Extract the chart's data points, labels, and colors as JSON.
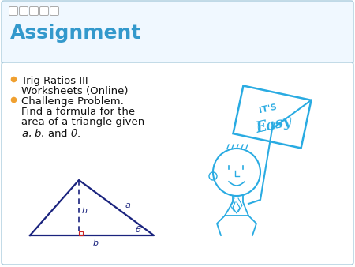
{
  "title": "Assignment",
  "title_color": "#3399CC",
  "title_fontsize": 18,
  "bullet1_line1": "Trig Ratios III",
  "bullet1_line2": "Worksheets (Online)",
  "bullet2_line1": "Challenge Problem:",
  "bullet2_line2": "Find a formula for the",
  "bullet2_line3": "area of a triangle given",
  "bullet2_line4": "a, b, and θ.",
  "bullet_color": "#F0A030",
  "text_color": "#111111",
  "text_fontsize": 9.5,
  "slide_bg": "#FFFFFF",
  "header_box_edgecolor": "#AACCDD",
  "header_box_fill": "#F0F8FF",
  "content_box_edgecolor": "#AACCDD",
  "content_box_fill": "#FFFFFF",
  "triangle_color": "#1A237E",
  "dashed_color": "#1A237E",
  "right_angle_color": "#CC2222",
  "sign_color": "#29ABE2",
  "cartoon_color": "#29ABE2",
  "dots_color": "#AAAAAA"
}
